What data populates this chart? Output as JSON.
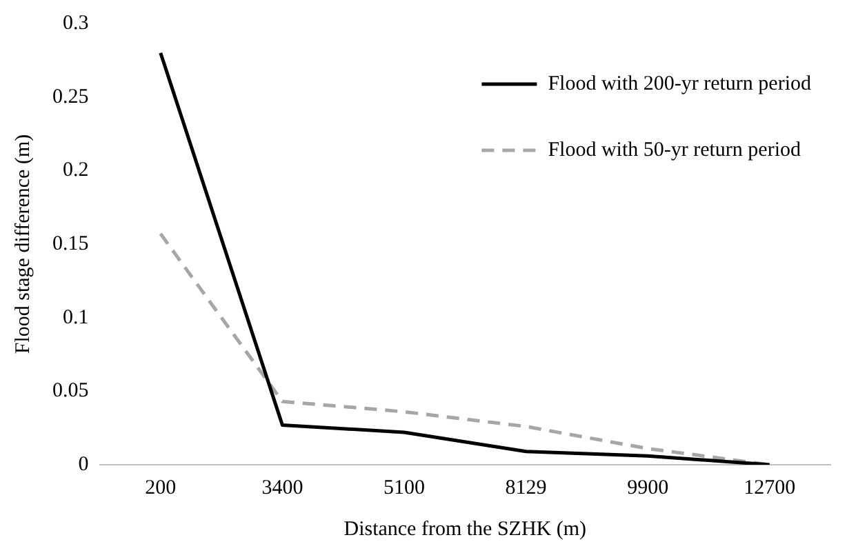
{
  "chart_data": {
    "type": "line",
    "xlabel": "Distance from the SZHK (m)",
    "ylabel": "Flood stage difference (m)",
    "categories": [
      "200",
      "3400",
      "5100",
      "8129",
      "9900",
      "12700"
    ],
    "series": [
      {
        "name": "Flood with 200-yr return period",
        "color": "#000000",
        "line_style": "solid",
        "values": [
          0.28,
          0.027,
          0.022,
          0.009,
          0.006,
          0
        ]
      },
      {
        "name": "Flood with 50-yr return period",
        "color": "#a6a6a6",
        "line_style": "dashed",
        "values": [
          0.157,
          0.043,
          0.036,
          0.026,
          0.011,
          0
        ]
      }
    ],
    "ylim": [
      0,
      0.3
    ],
    "yticks": [
      0,
      0.05,
      0.1,
      0.15,
      0.2,
      0.25,
      0.3
    ],
    "grid": false,
    "legend": "top right",
    "marker": "none"
  }
}
